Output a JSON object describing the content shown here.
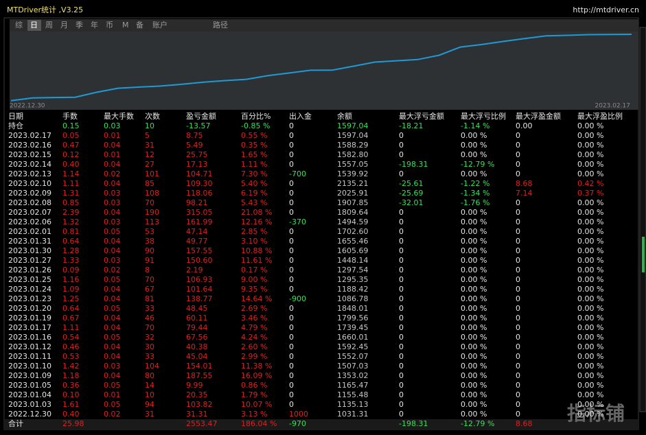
{
  "header": {
    "title": "MTDriver统计 ,V3.25",
    "url": "http://mtdriver.cn"
  },
  "tabs": [
    "综",
    "日",
    "周",
    "月",
    "季",
    "年",
    "币",
    "M",
    "备",
    "账户",
    "路径"
  ],
  "active_tab": 1,
  "chart": {
    "start_label": "2022.12.30",
    "end_label": "2023.02.17",
    "line_color": "#1e9bd7"
  },
  "table": {
    "columns": [
      "日期",
      "手数",
      "最大手数",
      "次数",
      "盈亏金额",
      "百分比%",
      "出入金",
      "余额",
      "最大浮亏金额",
      "最大浮亏比例",
      "最大浮盈金额",
      "最大浮盈比例"
    ],
    "rows": [
      [
        "持仓",
        "0.15",
        "0.03",
        "10",
        "-13.57",
        "-0.85 %",
        "0",
        "1597.04",
        "-18.21",
        "-1.14 %",
        "0.00",
        "0.00 %"
      ],
      [
        "2023.02.17",
        "0.05",
        "0.01",
        "5",
        "8.75",
        "0.55 %",
        "0",
        "1597.04",
        "0",
        "0.00 %",
        "0",
        "0.00 %"
      ],
      [
        "2023.02.16",
        "0.47",
        "0.04",
        "31",
        "5.49",
        "0.35 %",
        "0",
        "1588.29",
        "0",
        "0.00 %",
        "0",
        "0.00 %"
      ],
      [
        "2023.02.15",
        "0.12",
        "0.01",
        "12",
        "25.75",
        "1.65 %",
        "0",
        "1582.80",
        "0",
        "0.00 %",
        "0",
        "0.00 %"
      ],
      [
        "2023.02.14",
        "0.40",
        "0.04",
        "27",
        "17.13",
        "1.11 %",
        "0",
        "1557.05",
        "-198.31",
        "-12.79 %",
        "0",
        "0.00 %"
      ],
      [
        "2023.02.13",
        "1.14",
        "0.02",
        "101",
        "104.71",
        "7.30 %",
        "-700",
        "1539.92",
        "0",
        "0.00 %",
        "0",
        "0.00 %"
      ],
      [
        "2023.02.10",
        "1.11",
        "0.04",
        "85",
        "109.30",
        "5.40 %",
        "0",
        "2135.21",
        "-25.61",
        "-1.22 %",
        "8.68",
        "0.42 %"
      ],
      [
        "2023.02.09",
        "1.31",
        "0.03",
        "108",
        "118.06",
        "6.19 %",
        "0",
        "2025.91",
        "-25.69",
        "-1.34 %",
        "7.14",
        "0.37 %"
      ],
      [
        "2023.02.08",
        "0.85",
        "0.03",
        "70",
        "98.21",
        "5.43 %",
        "0",
        "1907.85",
        "-32.01",
        "-1.76 %",
        "0",
        "0.00 %"
      ],
      [
        "2023.02.07",
        "2.39",
        "0.04",
        "190",
        "315.05",
        "21.08 %",
        "0",
        "1809.64",
        "0",
        "0.00 %",
        "0",
        "0.00 %"
      ],
      [
        "2023.02.06",
        "1.32",
        "0.03",
        "113",
        "161.99",
        "12.16 %",
        "-370",
        "1494.59",
        "0",
        "0.00 %",
        "0",
        "0.00 %"
      ],
      [
        "2023.02.01",
        "0.81",
        "0.05",
        "53",
        "47.14",
        "2.85 %",
        "0",
        "1702.60",
        "0",
        "0.00 %",
        "0",
        "0.00 %"
      ],
      [
        "2023.01.31",
        "0.64",
        "0.04",
        "38",
        "49.77",
        "3.10 %",
        "0",
        "1655.46",
        "0",
        "0.00 %",
        "0",
        "0.00 %"
      ],
      [
        "2023.01.30",
        "1.28",
        "0.04",
        "90",
        "157.55",
        "10.88 %",
        "0",
        "1605.69",
        "0",
        "0.00 %",
        "0",
        "0.00 %"
      ],
      [
        "2023.01.27",
        "1.33",
        "0.03",
        "91",
        "150.60",
        "11.61 %",
        "0",
        "1448.14",
        "0",
        "0.00 %",
        "0",
        "0.00 %"
      ],
      [
        "2023.01.26",
        "0.09",
        "0.02",
        "8",
        "2.19",
        "0.17 %",
        "0",
        "1297.54",
        "0",
        "0.00 %",
        "0",
        "0.00 %"
      ],
      [
        "2023.01.25",
        "1.16",
        "0.05",
        "70",
        "106.93",
        "9.00 %",
        "0",
        "1295.35",
        "0",
        "0.00 %",
        "0",
        "0.00 %"
      ],
      [
        "2023.01.24",
        "1.09",
        "0.04",
        "67",
        "101.64",
        "9.35 %",
        "0",
        "1188.42",
        "0",
        "0.00 %",
        "0",
        "0.00 %"
      ],
      [
        "2023.01.23",
        "1.25",
        "0.04",
        "81",
        "138.77",
        "14.64 %",
        "-900",
        "1086.78",
        "0",
        "0.00 %",
        "0",
        "0.00 %"
      ],
      [
        "2023.01.20",
        "0.64",
        "0.05",
        "33",
        "48.45",
        "2.69 %",
        "0",
        "1848.01",
        "0",
        "0.00 %",
        "0",
        "0.00 %"
      ],
      [
        "2023.01.19",
        "0.67",
        "0.04",
        "46",
        "60.11",
        "3.46 %",
        "0",
        "1799.56",
        "0",
        "0.00 %",
        "0",
        "0.00 %"
      ],
      [
        "2023.01.17",
        "1.11",
        "0.04",
        "70",
        "79.44",
        "4.79 %",
        "0",
        "1739.45",
        "0",
        "0.00 %",
        "0",
        "0.00 %"
      ],
      [
        "2023.01.16",
        "0.54",
        "0.05",
        "32",
        "67.56",
        "4.24 %",
        "0",
        "1660.01",
        "0",
        "0.00 %",
        "0",
        "0.00 %"
      ],
      [
        "2023.01.12",
        "0.46",
        "0.04",
        "30",
        "40.38",
        "2.60 %",
        "0",
        "1592.45",
        "0",
        "0.00 %",
        "0",
        "0.00 %"
      ],
      [
        "2023.01.11",
        "0.53",
        "0.04",
        "33",
        "45.04",
        "2.99 %",
        "0",
        "1552.07",
        "0",
        "0.00 %",
        "0",
        "0.00 %"
      ],
      [
        "2023.01.10",
        "1.42",
        "0.03",
        "104",
        "154.01",
        "11.38 %",
        "0",
        "1507.03",
        "0",
        "0.00 %",
        "0",
        "0.00 %"
      ],
      [
        "2023.01.09",
        "1.18",
        "0.04",
        "80",
        "187.55",
        "16.09 %",
        "0",
        "1353.02",
        "0",
        "0.00 %",
        "0",
        "0.00 %"
      ],
      [
        "2023.01.05",
        "0.36",
        "0.05",
        "14",
        "9.99",
        "0.86 %",
        "0",
        "1165.47",
        "0",
        "0.00 %",
        "0",
        "0.00 %"
      ],
      [
        "2023.01.04",
        "0.10",
        "0.01",
        "10",
        "20.35",
        "1.79 %",
        "0",
        "1155.48",
        "0",
        "0.00 %",
        "0",
        "0.00 %"
      ],
      [
        "2023.01.03",
        "1.61",
        "0.05",
        "94",
        "103.82",
        "10.07 %",
        "0",
        "1135.13",
        "0",
        "0.00 %",
        "0",
        "0.00 %"
      ],
      [
        "2022.12.30",
        "0.40",
        "0.02",
        "31",
        "31.31",
        "3.13 %",
        "1000",
        "1031.31",
        "0",
        "0.00 %",
        "0",
        "0.00 %"
      ],
      [
        "合计",
        "25.98",
        null,
        null,
        "2553.47",
        "186.04 %",
        "-970",
        null,
        "-198.31",
        "-12.79 %",
        "8.68",
        null
      ]
    ]
  },
  "watermark": "指标铺"
}
